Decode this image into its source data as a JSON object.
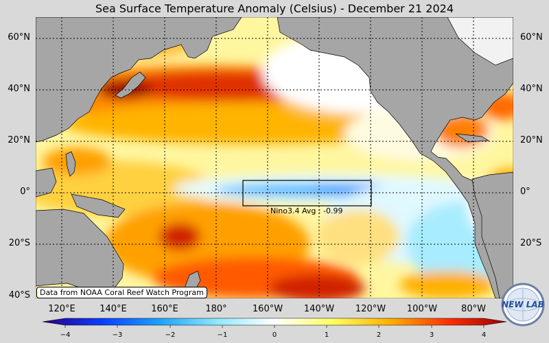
{
  "title": "Sea Surface Temperature Anomaly (Celsius) - December 21 2024",
  "lat_labels": [
    "60°N",
    "40°N",
    "20°N",
    "0°",
    "20°S",
    "40°S"
  ],
  "lon_labels": [
    "120°E",
    "140°E",
    "160°E",
    "180°",
    "160°W",
    "140°W",
    "120°W",
    "100°W",
    "80°W"
  ],
  "colorbar": {
    "ticks": [
      "−4",
      "−3",
      "−2",
      "−1",
      "0",
      "1",
      "2",
      "3",
      "4"
    ],
    "range": [
      -4,
      4
    ],
    "colors": [
      "#2a0080",
      "#0a3cff",
      "#19a0ff",
      "#8ee8ff",
      "#ffffff",
      "#ffff60",
      "#ffb000",
      "#ff3000",
      "#9a0000"
    ]
  },
  "nino_label": "Nino3.4 Avg : -0.99",
  "credit": "Data from NOAA Coral Reef Watch Program",
  "logo_text": "NEW LAB",
  "colors": {
    "land": "#a6a6a6",
    "frame_bg": "#d9d9d9",
    "box": "#000000"
  }
}
